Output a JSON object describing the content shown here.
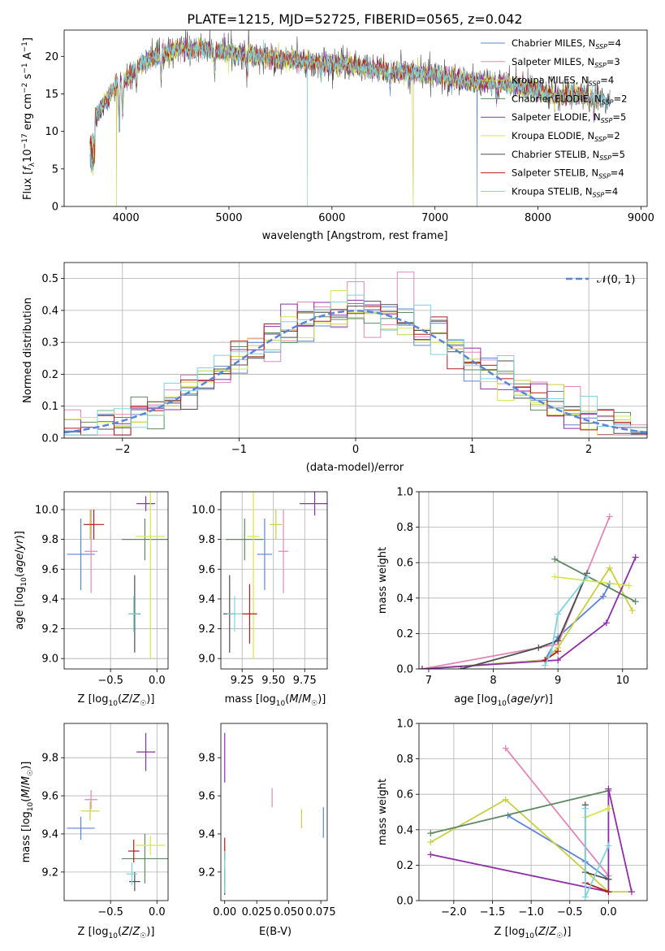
{
  "title": "PLATE=1215, MJD=52725, FIBERID=0565, z=0.042",
  "colors": [
    "#5b84d6",
    "#e088b8",
    "#c9cf44",
    "#5e8a62",
    "#8e2fa8",
    "#d6e64a",
    "#4d4d4d",
    "#b51c1c",
    "#7ed3de"
  ],
  "series_names": [
    "Chabrier MILES",
    "Salpeter MILES",
    "Kroupa MILES",
    "Chabrier ELODIE",
    "Salpeter ELODIE",
    "Kroupa ELODIE",
    "Chabrier STELIB",
    "Salpeter STELIB",
    "Kroupa STELIB"
  ],
  "chart_data": [
    {
      "type": "line",
      "panel": "spectrum",
      "xlabel": "wavelength [Angstrom, rest frame]",
      "ylabel": "Flux [f_λ10^-17 erg cm^-2 s^-1 A^-1]",
      "xlim": [
        3400,
        9060
      ],
      "ylim": [
        0,
        23.5
      ],
      "xticks": [
        4000,
        5000,
        6000,
        7000,
        8000,
        9000
      ],
      "yticks": [
        0,
        5,
        10,
        15,
        20
      ],
      "legend_position": "top-right",
      "legend": [
        {
          "label": "Chabrier MILES",
          "nssp": "4"
        },
        {
          "label": "Salpeter MILES",
          "nssp": "3"
        },
        {
          "label": "Kroupa MILES",
          "nssp": "4"
        },
        {
          "label": "Chabrier ELODIE",
          "nssp": "2"
        },
        {
          "label": "Salpeter ELODIE",
          "nssp": "5"
        },
        {
          "label": "Kroupa ELODIE",
          "nssp": "2"
        },
        {
          "label": "Chabrier STELIB",
          "nssp": "5"
        },
        {
          "label": "Salpeter STELIB",
          "nssp": "4"
        },
        {
          "label": "Kroupa STELIB",
          "nssp": "4"
        }
      ],
      "nssp_prefix": "N",
      "nssp_sub": "SSP",
      "continuum": {
        "x": [
          3650,
          3700,
          3800,
          3900,
          4000,
          4100,
          4200,
          4300,
          4400,
          4500,
          4700,
          5000,
          5300,
          5600,
          6000,
          6300,
          6600,
          7000,
          7400,
          7600,
          7800,
          8000,
          8200,
          8400,
          8600,
          8800
        ],
        "y": [
          11,
          12,
          14,
          16,
          17,
          18.5,
          19.5,
          20,
          20.5,
          21,
          21,
          20.5,
          20,
          19.5,
          19,
          18.5,
          18,
          17.5,
          16.5,
          16.5,
          16,
          15.5,
          14.5,
          15,
          14.5,
          14
        ]
      },
      "x_end": [
        8600,
        8600,
        8600,
        8600,
        8600,
        8600,
        8700,
        8600,
        8700
      ],
      "dropouts": [
        {
          "series": 2,
          "x": 3910,
          "y_min": 0
        },
        {
          "series": 8,
          "x": 5760,
          "y_min": 0
        },
        {
          "series": 2,
          "x": 6790,
          "y_min": 0
        },
        {
          "series": 0,
          "x": 7410,
          "y_min": 0
        }
      ]
    },
    {
      "type": "step",
      "panel": "residual-histograms",
      "xlabel": "(data-model)/error",
      "ylabel": "Normed distribution",
      "xlim": [
        -2.5,
        2.5
      ],
      "ylim": [
        0,
        0.55
      ],
      "xticks": [
        -2,
        -1,
        0,
        1,
        2
      ],
      "yticks": [
        0,
        0.1,
        0.2,
        0.3,
        0.4,
        0.5
      ],
      "bin_edges": [
        -2.5,
        2.5
      ],
      "bins": 35,
      "reference": {
        "label": "𝒩(0, 1)",
        "mean": 0,
        "sigma": 1
      },
      "legend_position": "top-right",
      "peak_bins": [
        {
          "series": 1,
          "x": 0.05,
          "y": 0.49
        },
        {
          "series": 1,
          "x": 0.48,
          "y": 0.52
        },
        {
          "series": 4,
          "x": -0.6,
          "y": 0.42
        },
        {
          "series": 4,
          "x": 1.63,
          "y": 0.17
        }
      ]
    },
    {
      "type": "errorbar",
      "panel": "age-vs-Z",
      "xlabel": "Z [log10(Z/Z☉)]",
      "ylabel": "age [log10(age/yr)]",
      "xlim": [
        -1.0,
        0.12
      ],
      "ylim": [
        8.93,
        10.12
      ],
      "xticks": [
        -0.5,
        0.0
      ],
      "yticks": [
        9.0,
        9.2,
        9.4,
        9.6,
        9.8,
        10.0
      ],
      "points": [
        {
          "series": 0,
          "x": -0.82,
          "y": 9.7,
          "xerr": 0.15,
          "yerr": 0.24
        },
        {
          "series": 1,
          "x": -0.71,
          "y": 9.72,
          "xerr": 0.07,
          "yerr": 0.28
        },
        {
          "series": 2,
          "x": -0.72,
          "y": 9.9,
          "xerr": 0.04,
          "yerr": 0.1
        },
        {
          "series": 3,
          "x": -0.13,
          "y": 9.8,
          "xerr": 0.25,
          "yerr": 0.14
        },
        {
          "series": 4,
          "x": -0.12,
          "y": 10.04,
          "xerr": 0.1,
          "yerr": 0.05
        },
        {
          "series": 5,
          "x": -0.07,
          "y": 9.82,
          "xerr": 0.16,
          "yerr": 0.82
        },
        {
          "series": 6,
          "x": -0.24,
          "y": 9.3,
          "xerr": 0.06,
          "yerr": 0.26
        },
        {
          "series": 7,
          "x": -0.68,
          "y": 9.9,
          "xerr": 0.11,
          "yerr": 0.1
        },
        {
          "series": 8,
          "x": -0.25,
          "y": 9.3,
          "xerr": 0.06,
          "yerr": 0.12
        }
      ]
    },
    {
      "type": "errorbar",
      "panel": "age-vs-mass",
      "xlabel": "mass [log10(M/M☉)]",
      "ylabel": "",
      "xlim": [
        9.08,
        9.93
      ],
      "ylim": [
        8.93,
        10.12
      ],
      "xticks": [
        9.25,
        9.5,
        9.75
      ],
      "yticks": [
        9.0,
        9.2,
        9.4,
        9.6,
        9.8,
        10.0
      ],
      "points": [
        {
          "series": 0,
          "x": 9.43,
          "y": 9.7,
          "xerr": 0.06,
          "yerr": 0.24
        },
        {
          "series": 1,
          "x": 9.58,
          "y": 9.72,
          "xerr": 0.04,
          "yerr": 0.28
        },
        {
          "series": 2,
          "x": 9.52,
          "y": 9.9,
          "xerr": 0.05,
          "yerr": 0.1
        },
        {
          "series": 3,
          "x": 9.27,
          "y": 9.8,
          "xerr": 0.15,
          "yerr": 0.14
        },
        {
          "series": 4,
          "x": 9.83,
          "y": 10.04,
          "xerr": 0.12,
          "yerr": 0.08
        },
        {
          "series": 5,
          "x": 9.34,
          "y": 9.82,
          "xerr": 0.05,
          "yerr": 0.82
        },
        {
          "series": 6,
          "x": 9.15,
          "y": 9.3,
          "xerr": 0.05,
          "yerr": 0.26
        },
        {
          "series": 7,
          "x": 9.31,
          "y": 9.3,
          "xerr": 0.06,
          "yerr": 0.2
        },
        {
          "series": 8,
          "x": 9.19,
          "y": 9.3,
          "xerr": 0.06,
          "yerr": 0.12
        }
      ]
    },
    {
      "type": "line",
      "panel": "mass-weight-vs-age",
      "xlabel": "age [log10(age/yr)]",
      "ylabel": "mass weight",
      "xlim": [
        6.85,
        10.38
      ],
      "ylim": [
        0,
        1.0
      ],
      "xticks": [
        7,
        8,
        9,
        10
      ],
      "yticks": [
        0,
        0.2,
        0.4,
        0.6,
        0.8,
        1.0
      ],
      "series": [
        {
          "series": 0,
          "x": [
            6.9,
            8.8,
            9.0,
            9.7,
            9.8
          ],
          "y": [
            0.0,
            0.05,
            0.18,
            0.41,
            0.48
          ]
        },
        {
          "series": 1,
          "x": [
            6.9,
            9.0,
            9.8
          ],
          "y": [
            0.0,
            0.14,
            0.86
          ]
        },
        {
          "series": 2,
          "x": [
            6.9,
            8.8,
            9.0,
            9.8,
            10.15
          ],
          "y": [
            0.0,
            0.05,
            0.12,
            0.57,
            0.33
          ]
        },
        {
          "series": 3,
          "x": [
            8.95,
            10.2
          ],
          "y": [
            0.62,
            0.38
          ]
        },
        {
          "series": 4,
          "x": [
            6.9,
            9.0,
            9.75,
            10.2
          ],
          "y": [
            0.0,
            0.05,
            0.26,
            0.63
          ]
        },
        {
          "series": 5,
          "x": [
            8.95,
            10.1
          ],
          "y": [
            0.52,
            0.47
          ]
        },
        {
          "series": 6,
          "x": [
            7.5,
            8.7,
            9.0,
            9.45
          ],
          "y": [
            0.0,
            0.12,
            0.16,
            0.54
          ]
        },
        {
          "series": 7,
          "x": [
            8.8,
            9.0
          ],
          "y": [
            0.05,
            0.1
          ]
        },
        {
          "series": 8,
          "x": [
            8.8,
            8.9,
            9.0,
            9.45
          ],
          "y": [
            0.02,
            0.1,
            0.31,
            0.52
          ]
        }
      ]
    },
    {
      "type": "errorbar",
      "panel": "mass-vs-Z",
      "xlabel": "Z [log10(Z/Z☉)]",
      "ylabel": "mass [log10(M/M☉)]",
      "xlim": [
        -1.0,
        0.12
      ],
      "ylim": [
        9.05,
        9.98
      ],
      "xticks": [
        -0.5,
        0.0
      ],
      "yticks": [
        9.2,
        9.4,
        9.6,
        9.8
      ],
      "points": [
        {
          "series": 0,
          "x": -0.82,
          "y": 9.43,
          "xerr": 0.15,
          "yerr": 0.06
        },
        {
          "series": 1,
          "x": -0.71,
          "y": 9.58,
          "xerr": 0.07,
          "yerr": 0.05
        },
        {
          "series": 2,
          "x": -0.72,
          "y": 9.52,
          "xerr": 0.1,
          "yerr": 0.05
        },
        {
          "series": 3,
          "x": -0.13,
          "y": 9.27,
          "xerr": 0.25,
          "yerr": 0.13
        },
        {
          "series": 4,
          "x": -0.12,
          "y": 9.83,
          "xerr": 0.1,
          "yerr": 0.1
        },
        {
          "series": 5,
          "x": -0.07,
          "y": 9.34,
          "xerr": 0.16,
          "yerr": 0.05
        },
        {
          "series": 6,
          "x": -0.24,
          "y": 9.15,
          "xerr": 0.06,
          "yerr": 0.05
        },
        {
          "series": 7,
          "x": -0.25,
          "y": 9.31,
          "xerr": 0.06,
          "yerr": 0.06
        },
        {
          "series": 8,
          "x": -0.27,
          "y": 9.19,
          "xerr": 0.06,
          "yerr": 0.06
        }
      ]
    },
    {
      "type": "errorbar",
      "panel": "mass-vs-EBV",
      "xlabel": "E(B-V)",
      "ylabel": "",
      "xlim": [
        -0.003,
        0.08
      ],
      "ylim": [
        9.05,
        9.98
      ],
      "xticks": [
        0.0,
        0.025,
        0.05,
        0.075
      ],
      "xtick_labels": [
        "0.00",
        "0.025",
        "0.050",
        "0.075"
      ],
      "yticks": [
        9.2,
        9.4,
        9.6,
        9.8
      ],
      "points": [
        {
          "series": 0,
          "x": 0.077,
          "y": 9.46,
          "yerr": 0.08
        },
        {
          "series": 1,
          "x": 0.037,
          "y": 9.59,
          "yerr": 0.05
        },
        {
          "series": 2,
          "x": 0.06,
          "y": 9.48,
          "yerr": 0.05
        },
        {
          "series": 3,
          "x": 0.0,
          "y": 9.22,
          "yerr": 0.08
        },
        {
          "series": 4,
          "x": 0.0,
          "y": 9.8,
          "yerr": 0.13
        },
        {
          "series": 5,
          "x": 0.0,
          "y": 9.25,
          "yerr": 0.08
        },
        {
          "series": 6,
          "x": 0.0,
          "y": 9.15,
          "yerr": 0.07
        },
        {
          "series": 7,
          "x": 0.0,
          "y": 9.32,
          "yerr": 0.06
        },
        {
          "series": 8,
          "x": 0.0,
          "y": 9.2,
          "yerr": 0.11
        }
      ]
    },
    {
      "type": "line",
      "panel": "mass-weight-vs-Z",
      "xlabel": "Z [log10(Z/Z☉)]",
      "ylabel": "mass weight",
      "xlim": [
        -2.45,
        0.5
      ],
      "ylim": [
        0,
        1.0
      ],
      "xticks": [
        -2.0,
        -1.5,
        -1.0,
        -0.5,
        0.0
      ],
      "yticks": [
        0,
        0.2,
        0.4,
        0.6,
        0.8,
        1.0
      ],
      "series": [
        {
          "series": 0,
          "x": [
            -1.3,
            -0.3,
            0.0
          ],
          "y": [
            0.48,
            0.22,
            0.12
          ]
        },
        {
          "series": 1,
          "x": [
            -1.33,
            0.0
          ],
          "y": [
            0.86,
            0.14
          ]
        },
        {
          "series": 2,
          "x": [
            -2.3,
            -1.33,
            0.0,
            0.3
          ],
          "y": [
            0.33,
            0.57,
            0.05,
            0.05
          ]
        },
        {
          "series": 3,
          "x": [
            -2.3,
            0.0
          ],
          "y": [
            0.38,
            0.62
          ]
        },
        {
          "series": 4,
          "x": [
            -2.3,
            0.0,
            0.0,
            0.3
          ],
          "y": [
            0.26,
            0.05,
            0.63,
            0.05
          ]
        },
        {
          "series": 5,
          "x": [
            -0.3,
            0.0
          ],
          "y": [
            0.47,
            0.52
          ]
        },
        {
          "series": 6,
          "x": [
            -0.3,
            -0.3,
            0.0
          ],
          "y": [
            0.54,
            0.16,
            0.12
          ]
        },
        {
          "series": 7,
          "x": [
            -0.3,
            0.0
          ],
          "y": [
            0.1,
            0.05
          ]
        },
        {
          "series": 8,
          "x": [
            -0.3,
            -0.3,
            0.0
          ],
          "y": [
            0.52,
            0.02,
            0.31
          ]
        }
      ]
    }
  ]
}
